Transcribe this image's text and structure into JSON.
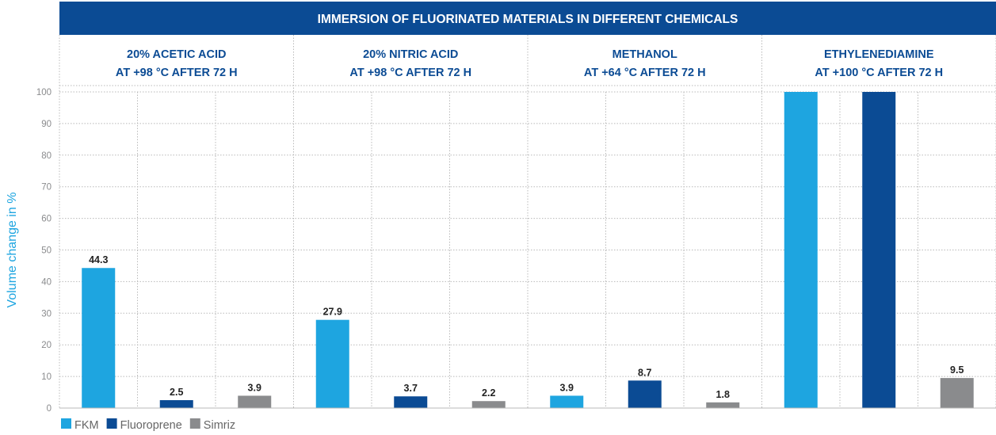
{
  "chart_data": {
    "type": "bar",
    "title": "IMMERSION OF FLUORINATED MATERIALS IN DIFFERENT CHEMICALS",
    "ylabel": "Volume change in  %",
    "ylim": [
      0,
      100
    ],
    "yticks": [
      0,
      10,
      20,
      30,
      40,
      50,
      60,
      70,
      80,
      90,
      100
    ],
    "grid": true,
    "legend_position": "bottom-left",
    "categories": [
      {
        "line1": "20% ACETIC ACID",
        "line2": "AT +98 °C AFTER 72 H"
      },
      {
        "line1": "20% NITRIC ACID",
        "line2": "AT +98 °C AFTER 72 H"
      },
      {
        "line1": "METHANOL",
        "line2": "AT +64 °C AFTER 72 H"
      },
      {
        "line1": "ETHYLENEDIAMINE",
        "line2": "AT +100 °C AFTER 72 H"
      }
    ],
    "series": [
      {
        "name": "FKM",
        "color": "#1ea5e0",
        "values": [
          44.3,
          27.9,
          3.9,
          100
        ],
        "labels": [
          "44.3",
          "27.9",
          "3.9",
          ""
        ]
      },
      {
        "name": "Fluoroprene",
        "color": "#0b4b94",
        "values": [
          2.5,
          3.7,
          8.7,
          100
        ],
        "labels": [
          "2.5",
          "3.7",
          "8.7",
          ""
        ]
      },
      {
        "name": "Simriz",
        "color": "#8a8b8d",
        "values": [
          3.9,
          2.2,
          1.8,
          9.5
        ],
        "labels": [
          "3.9",
          "2.2",
          "1.8",
          "9.5"
        ]
      }
    ]
  },
  "colors": {
    "header_bg": "#0b4b94",
    "header_text": "#ffffff",
    "category_text": "#0b4b94",
    "axis_label": "#1ea5e0",
    "tick_text": "#8a8b8d",
    "grid": "#b9b9b9"
  }
}
